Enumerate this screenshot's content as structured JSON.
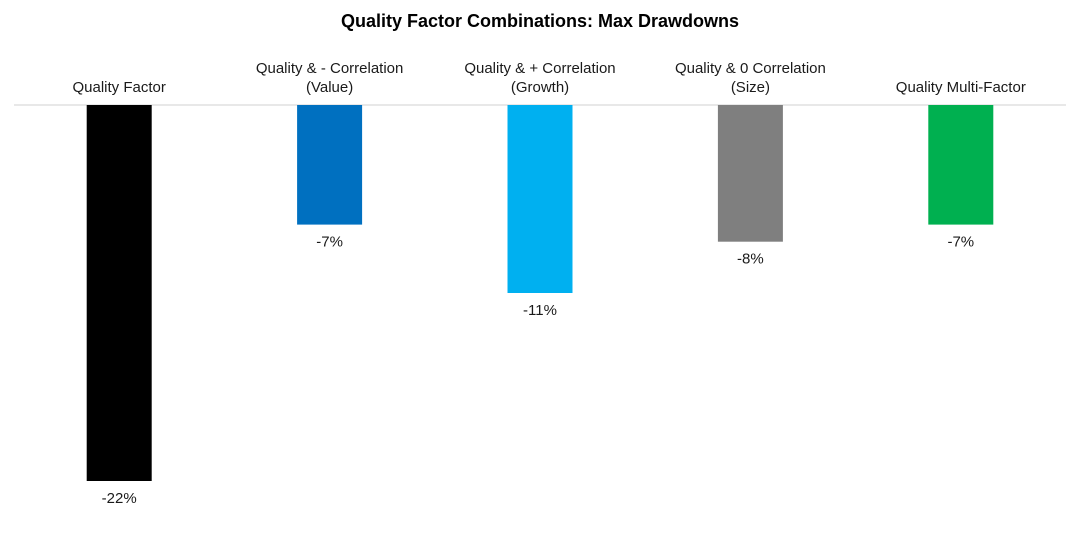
{
  "chart_data": {
    "type": "bar",
    "title": "Quality Factor Combinations: Max Drawdowns",
    "xlabel": "",
    "ylabel": "",
    "ylim": [
      -22,
      0
    ],
    "categories": [
      [
        "Quality Factor"
      ],
      [
        "Quality & - Correlation",
        "(Value)"
      ],
      [
        "Quality & + Correlation",
        "(Growth)"
      ],
      [
        "Quality & 0 Correlation",
        "(Size)"
      ],
      [
        "Quality Multi-Factor"
      ]
    ],
    "values": [
      -22,
      -7,
      -11,
      -8,
      -7
    ],
    "data_labels": [
      "-22%",
      "-7%",
      "-11%",
      "-8%",
      "-7%"
    ],
    "colors": [
      "#000000",
      "#0070C0",
      "#00B0F0",
      "#7F7F7F",
      "#00B050"
    ],
    "grid": false,
    "legend": "none"
  }
}
